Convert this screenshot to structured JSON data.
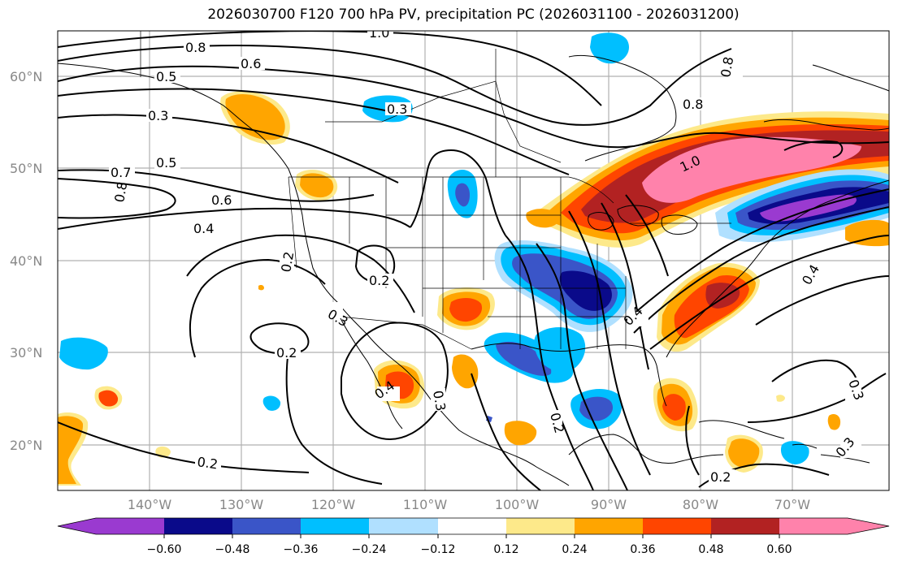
{
  "title": "2026030700 F120 700 hPa PV, precipitation PC (2026031100 - 2026031200)",
  "lat_labels": [
    "60°N",
    "50°N",
    "40°N",
    "30°N",
    "20°N"
  ],
  "lon_labels": [
    "140°W",
    "130°W",
    "120°W",
    "110°W",
    "100°W",
    "90°W",
    "80°W",
    "70°W"
  ],
  "colorbar": {
    "ticks": [
      "−0.60",
      "−0.48",
      "−0.36",
      "−0.24",
      "−0.12",
      "0.12",
      "0.24",
      "0.36",
      "0.48",
      "0.60"
    ],
    "colors": [
      "#9a3ad0",
      "#0a0a8a",
      "#3a55c8",
      "#00bfff",
      "#b0e0ff",
      "#ffffff",
      "#fde98a",
      "#ffa500",
      "#ff4500",
      "#b22222",
      "#ff82ab"
    ]
  },
  "contour_labels": [
    "1.0",
    "0.8",
    "0.6",
    "0.5",
    "0.3",
    "0.3",
    "0.5",
    "0.7",
    "0.8",
    "0.6",
    "0.4",
    "0.2",
    "0.2",
    "0.3",
    "0.2",
    "0.4",
    "0.3",
    "0.2",
    "0.2",
    "0.8",
    "0.8",
    "1.0",
    "0.4",
    "0.4",
    "0.3",
    "0.3",
    "0.2"
  ],
  "colors": {
    "neg_deep": "#0a0a8a",
    "neg_blue": "#3a55c8",
    "neg_cyan": "#00bfff",
    "neg_light": "#b0e0ff",
    "pos_yellow": "#fde98a",
    "pos_orange": "#ffa500",
    "pos_red": "#ff4500",
    "pos_dark": "#b22222",
    "pos_pink": "#ff82ab",
    "purple": "#9a3ad0"
  }
}
